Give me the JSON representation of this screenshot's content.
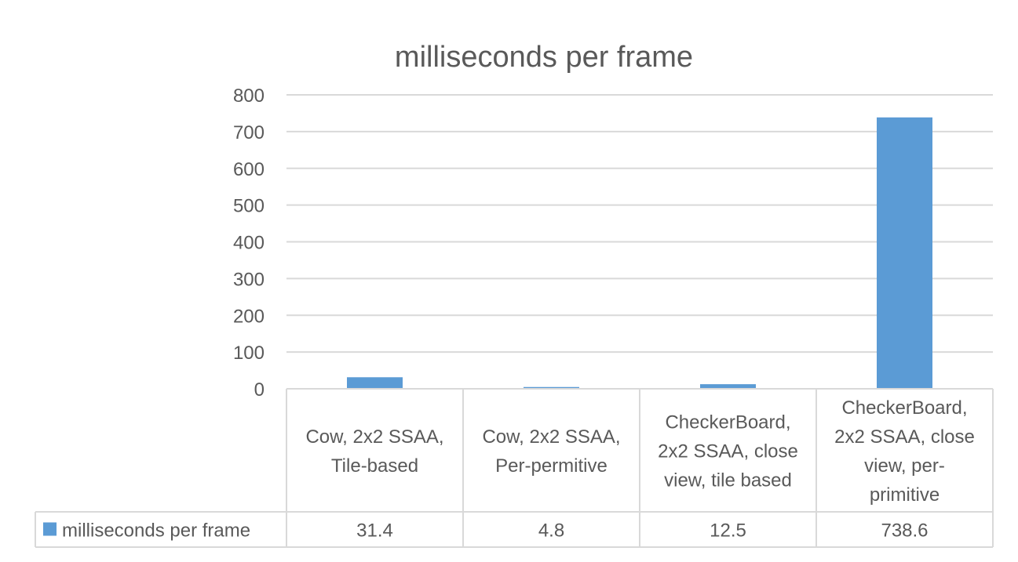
{
  "chart_data": {
    "type": "bar",
    "title": "milliseconds per frame",
    "categories": [
      [
        "Cow, 2x2 SSAA,",
        "Tile-based"
      ],
      [
        "Cow, 2x2 SSAA,",
        "Per-permitive"
      ],
      [
        "CheckerBoard,",
        "2x2 SSAA, close",
        "view, tile based"
      ],
      [
        "CheckerBoard,",
        "2x2 SSAA, close",
        "view, per-",
        "primitive"
      ]
    ],
    "series": [
      {
        "name": "milliseconds per frame",
        "values": [
          31.4,
          4.8,
          12.5,
          738.6
        ]
      }
    ],
    "data_table_values": [
      "31.4",
      "4.8",
      "12.5",
      "738.6"
    ],
    "ylim": [
      0,
      800
    ],
    "yticks": [
      0,
      100,
      200,
      300,
      400,
      500,
      600,
      700,
      800
    ],
    "grid": true,
    "legend": "data-table",
    "colors": {
      "bar": "#5B9BD5",
      "grid": "#D9D9D9",
      "text": "#595959",
      "title": "#595959"
    }
  }
}
